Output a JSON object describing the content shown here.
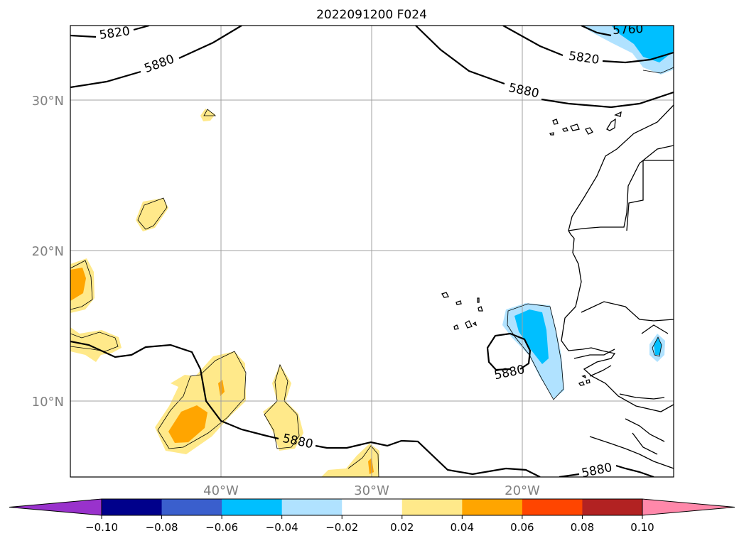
{
  "title": "2022091200 F024",
  "lat_labels": [
    "30°N",
    "20°N",
    "10°N"
  ],
  "lon_labels": [
    "40°W",
    "30°W",
    "20°W"
  ],
  "contour_labels": [
    "5820",
    "5880",
    "5760",
    "5820",
    "5880",
    "5880",
    "5880",
    "5880"
  ],
  "colorbar": {
    "ticks": [
      "−0.10",
      "−0.08",
      "−0.06",
      "−0.04",
      "−0.02",
      "0.02",
      "0.04",
      "0.06",
      "0.08",
      "0.10"
    ],
    "colors": {
      "under": "#9932cc",
      "bins": [
        "#00008b",
        "#3a5fcd",
        "#00bfff",
        "#b0e2ff",
        "#ffffff",
        "#ffe98a",
        "#ffa500",
        "#ff4500",
        "#b22222"
      ],
      "over": "#ff88aa"
    }
  },
  "fill_colors": {
    "light_yellow": "#ffe98a",
    "orange": "#ffa500",
    "light_blue": "#b0e2ff",
    "blue": "#00bfff"
  }
}
